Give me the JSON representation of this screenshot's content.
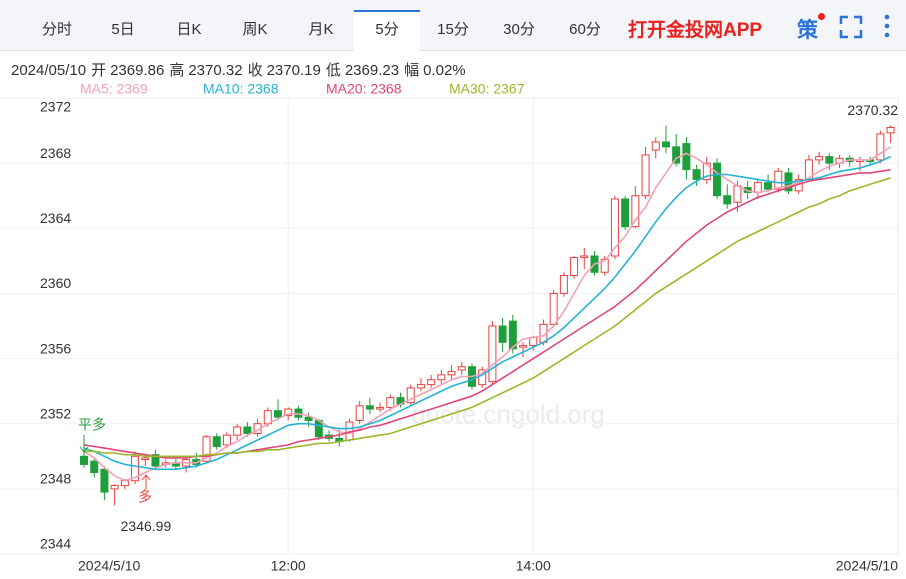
{
  "header": {
    "tabs": [
      "分时",
      "5日",
      "日K",
      "周K",
      "月K",
      "5分",
      "15分",
      "30分",
      "60分"
    ],
    "app_link": "打开金投网APP",
    "strategy": "策"
  },
  "info": {
    "date": "2024/05/10",
    "items": [
      {
        "label": "开",
        "value": "2369.86"
      },
      {
        "label": "高",
        "value": "2370.32"
      },
      {
        "label": "收",
        "value": "2370.19"
      },
      {
        "label": "低",
        "value": "2369.23"
      },
      {
        "label": "幅",
        "value": "0.02%"
      }
    ]
  },
  "chart_data": {
    "type": "candlestick",
    "categories": [
      "2024/5/10",
      null,
      null,
      null,
      null,
      null,
      null,
      null,
      null,
      null,
      null,
      null,
      null,
      null,
      null,
      null,
      null,
      null,
      null,
      null,
      "12:00",
      null,
      null,
      null,
      null,
      null,
      null,
      null,
      null,
      null,
      null,
      null,
      null,
      null,
      null,
      null,
      null,
      null,
      null,
      null,
      null,
      null,
      null,
      null,
      "14:00",
      null,
      null,
      null,
      null,
      null,
      null,
      null,
      null,
      null,
      null,
      null,
      null,
      null,
      null,
      null,
      null,
      null,
      null,
      null,
      null,
      null,
      null,
      null,
      null,
      null,
      null,
      null,
      null,
      null,
      null,
      null,
      null,
      null,
      null,
      "2024/5/10"
    ],
    "open": [
      2350.0,
      2349.7,
      2349.2,
      2348.0,
      2348.2,
      2348.5,
      2349.8,
      2350.1,
      2349.5,
      2349.6,
      2349.4,
      2349.8,
      2349.7,
      2351.2,
      2350.7,
      2351.3,
      2351.8,
      2351.4,
      2352.0,
      2352.8,
      2352.5,
      2352.9,
      2352.4,
      2352.2,
      2351.3,
      2351.1,
      2351.0,
      2352.2,
      2353.1,
      2352.9,
      2353.0,
      2353.6,
      2353.3,
      2354.2,
      2354.4,
      2354.7,
      2355.0,
      2355.3,
      2355.5,
      2354.4,
      2354.6,
      2358.0,
      2358.3,
      2356.7,
      2356.8,
      2357.0,
      2358.1,
      2360.0,
      2361.1,
      2362.2,
      2362.3,
      2361.3,
      2362.3,
      2365.8,
      2364.1,
      2366.0,
      2368.8,
      2369.3,
      2369.0,
      2369.2,
      2367.6,
      2367.0,
      2368.0,
      2366.0,
      2365.6,
      2366.5,
      2366.2,
      2366.8,
      2366.4,
      2367.4,
      2366.3,
      2367.0,
      2368.2,
      2368.4,
      2368.0,
      2368.3,
      2368.1,
      2368.2,
      2368.2,
      2369.86
    ],
    "high": [
      2350.3,
      2349.9,
      2349.4,
      2348.3,
      2348.6,
      2350.3,
      2350.1,
      2350.4,
      2349.8,
      2349.9,
      2349.9,
      2350.2,
      2351.3,
      2351.4,
      2351.5,
      2352.0,
      2352.1,
      2352.3,
      2353.0,
      2353.5,
      2353.0,
      2353.1,
      2352.7,
      2352.3,
      2351.6,
      2351.7,
      2352.3,
      2353.4,
      2353.6,
      2353.3,
      2353.8,
      2353.9,
      2354.4,
      2354.8,
      2355.0,
      2355.3,
      2355.6,
      2355.8,
      2355.7,
      2355.5,
      2358.3,
      2358.5,
      2358.7,
      2357.0,
      2357.4,
      2358.4,
      2360.2,
      2361.3,
      2362.3,
      2362.8,
      2362.6,
      2362.3,
      2366.0,
      2366.0,
      2366.6,
      2369.0,
      2369.6,
      2370.3,
      2369.8,
      2369.6,
      2367.9,
      2368.4,
      2368.3,
      2366.7,
      2366.9,
      2366.9,
      2367.0,
      2367.3,
      2367.7,
      2367.7,
      2367.3,
      2368.5,
      2368.7,
      2368.6,
      2368.5,
      2368.5,
      2368.4,
      2368.4,
      2370.0,
      2370.32
    ],
    "low": [
      2349.3,
      2348.7,
      2347.3,
      2346.99,
      2348.0,
      2348.3,
      2349.4,
      2349.2,
      2349.3,
      2349.2,
      2349.0,
      2349.3,
      2349.6,
      2350.4,
      2350.5,
      2351.0,
      2351.2,
      2351.2,
      2351.8,
      2352.2,
      2352.2,
      2352.2,
      2351.8,
      2351.0,
      2350.9,
      2350.6,
      2350.9,
      2352.0,
      2352.6,
      2352.7,
      2352.8,
      2353.0,
      2353.1,
      2354.0,
      2354.2,
      2354.4,
      2354.7,
      2355.0,
      2354.1,
      2354.2,
      2354.4,
      2356.4,
      2356.3,
      2356.1,
      2356.5,
      2356.8,
      2357.9,
      2359.8,
      2360.9,
      2361.5,
      2361.1,
      2361.1,
      2362.1,
      2363.9,
      2364.0,
      2365.8,
      2368.3,
      2368.6,
      2367.8,
      2367.0,
      2366.6,
      2366.7,
      2365.8,
      2365.2,
      2365.0,
      2365.8,
      2365.8,
      2366.2,
      2366.2,
      2366.1,
      2366.1,
      2366.9,
      2367.9,
      2367.6,
      2367.7,
      2367.8,
      2367.5,
      2367.9,
      2368.0,
      2369.23
    ],
    "close": [
      2349.5,
      2349.0,
      2347.8,
      2348.2,
      2348.5,
      2350.0,
      2349.9,
      2349.4,
      2349.6,
      2349.4,
      2349.8,
      2349.5,
      2351.2,
      2350.6,
      2351.3,
      2351.8,
      2351.4,
      2352.0,
      2352.8,
      2352.4,
      2352.9,
      2352.4,
      2352.2,
      2351.2,
      2351.1,
      2350.9,
      2352.1,
      2353.1,
      2352.9,
      2353.0,
      2353.6,
      2353.2,
      2354.2,
      2354.4,
      2354.7,
      2355.0,
      2355.2,
      2355.5,
      2354.3,
      2355.3,
      2358.0,
      2357.0,
      2356.6,
      2356.8,
      2357.3,
      2358.1,
      2360.0,
      2361.1,
      2362.2,
      2362.3,
      2361.3,
      2362.1,
      2365.8,
      2364.1,
      2366.0,
      2368.5,
      2369.3,
      2369.0,
      2368.0,
      2367.6,
      2367.0,
      2368.0,
      2366.0,
      2365.5,
      2366.6,
      2366.2,
      2366.8,
      2366.4,
      2367.5,
      2366.3,
      2367.0,
      2368.2,
      2368.4,
      2368.0,
      2368.3,
      2368.1,
      2368.2,
      2368.1,
      2369.8,
      2370.19
    ],
    "up_color": "#e8413e",
    "down_color": "#1f9e3c",
    "series": [
      {
        "name": "MA5",
        "legend_label": "MA5: 2369",
        "color": "#f2a1b6",
        "values": [
          2350.3,
          2349.9,
          2349.3,
          2348.8,
          2348.5,
          2348.7,
          2349.0,
          2349.3,
          2349.5,
          2349.6,
          2349.6,
          2349.6,
          2349.9,
          2350.2,
          2350.6,
          2350.9,
          2351.3,
          2351.6,
          2352.0,
          2352.3,
          2352.6,
          2352.6,
          2352.5,
          2352.2,
          2351.8,
          2351.5,
          2351.4,
          2351.7,
          2352.1,
          2352.5,
          2352.9,
          2353.2,
          2353.5,
          2353.8,
          2354.1,
          2354.4,
          2354.7,
          2354.9,
          2354.9,
          2355.1,
          2355.6,
          2356.1,
          2356.7,
          2357.2,
          2357.3,
          2357.4,
          2358.0,
          2358.9,
          2360.0,
          2361.1,
          2361.8,
          2362.0,
          2362.8,
          2363.5,
          2364.5,
          2365.3,
          2366.5,
          2367.4,
          2368.3,
          2368.6,
          2368.3,
          2367.9,
          2367.4,
          2367.0,
          2366.6,
          2366.3,
          2366.2,
          2366.3,
          2366.5,
          2366.6,
          2366.8,
          2367.1,
          2367.5,
          2367.8,
          2368.0,
          2368.2,
          2368.2,
          2368.2,
          2368.6,
          2369.0
        ]
      },
      {
        "name": "MA10",
        "legend_label": "MA10: 2368",
        "color": "#25b3d3",
        "values": [
          2350.5,
          2350.3,
          2350.0,
          2349.7,
          2349.5,
          2349.4,
          2349.3,
          2349.2,
          2349.2,
          2349.2,
          2349.3,
          2349.4,
          2349.6,
          2349.8,
          2350.1,
          2350.4,
          2350.7,
          2351.0,
          2351.3,
          2351.6,
          2351.9,
          2352.0,
          2352.0,
          2351.9,
          2351.8,
          2351.7,
          2351.7,
          2351.8,
          2352.0,
          2352.2,
          2352.5,
          2352.8,
          2353.1,
          2353.4,
          2353.7,
          2354.0,
          2354.3,
          2354.5,
          2354.7,
          2355.0,
          2355.4,
          2355.8,
          2356.1,
          2356.4,
          2356.7,
          2357.0,
          2357.4,
          2357.9,
          2358.5,
          2359.1,
          2359.7,
          2360.3,
          2361.0,
          2361.8,
          2362.6,
          2363.5,
          2364.4,
          2365.2,
          2365.9,
          2366.5,
          2366.9,
          2367.2,
          2367.3,
          2367.3,
          2367.2,
          2367.1,
          2367.0,
          2366.9,
          2366.8,
          2366.8,
          2366.9,
          2367.0,
          2367.1,
          2367.3,
          2367.5,
          2367.6,
          2367.7,
          2367.9,
          2368.1,
          2368.4
        ]
      },
      {
        "name": "MA20",
        "legend_label": "MA20: 2368",
        "color": "#e0457b",
        "values": [
          2350.7,
          2350.6,
          2350.5,
          2350.4,
          2350.3,
          2350.2,
          2350.1,
          2350.0,
          2349.9,
          2349.9,
          2349.9,
          2350.0,
          2350.0,
          2350.1,
          2350.2,
          2350.2,
          2350.3,
          2350.4,
          2350.5,
          2350.6,
          2350.7,
          2350.9,
          2351.0,
          2351.1,
          2351.2,
          2351.3,
          2351.5,
          2351.6,
          2351.8,
          2351.9,
          2352.1,
          2352.3,
          2352.5,
          2352.7,
          2352.9,
          2353.1,
          2353.3,
          2353.5,
          2353.7,
          2354.0,
          2354.4,
          2354.8,
          2355.2,
          2355.6,
          2356.0,
          2356.4,
          2356.8,
          2357.2,
          2357.6,
          2358.0,
          2358.4,
          2358.8,
          2359.2,
          2359.7,
          2360.2,
          2360.8,
          2361.4,
          2362.0,
          2362.6,
          2363.2,
          2363.7,
          2364.2,
          2364.6,
          2365.0,
          2365.3,
          2365.6,
          2365.9,
          2366.1,
          2366.3,
          2366.5,
          2366.7,
          2366.9,
          2367.0,
          2367.1,
          2367.2,
          2367.3,
          2367.4,
          2367.4,
          2367.5,
          2367.6
        ]
      },
      {
        "name": "MA30",
        "legend_label": "MA30: 2367",
        "color": "#9bb82a",
        "values": [
          2350.3,
          2350.3,
          2350.2,
          2350.2,
          2350.1,
          2350.1,
          2350.0,
          2350.0,
          2350.0,
          2350.0,
          2350.0,
          2350.0,
          2350.1,
          2350.1,
          2350.2,
          2350.2,
          2350.3,
          2350.3,
          2350.4,
          2350.4,
          2350.5,
          2350.6,
          2350.7,
          2350.8,
          2350.8,
          2350.9,
          2351.0,
          2351.1,
          2351.2,
          2351.3,
          2351.4,
          2351.6,
          2351.8,
          2352.0,
          2352.2,
          2352.4,
          2352.6,
          2352.8,
          2353.0,
          2353.3,
          2353.6,
          2353.9,
          2354.2,
          2354.5,
          2354.8,
          2355.2,
          2355.6,
          2356.0,
          2356.4,
          2356.8,
          2357.2,
          2357.6,
          2358.0,
          2358.5,
          2359.0,
          2359.5,
          2360.0,
          2360.4,
          2360.8,
          2361.2,
          2361.6,
          2362.0,
          2362.4,
          2362.8,
          2363.2,
          2363.5,
          2363.8,
          2364.1,
          2364.4,
          2364.7,
          2365.0,
          2365.3,
          2365.5,
          2365.8,
          2366.0,
          2366.3,
          2366.5,
          2366.7,
          2366.9,
          2367.1
        ]
      }
    ],
    "ylim": [
      2344,
      2372
    ],
    "yticks": [
      2344,
      2348,
      2352,
      2356,
      2360,
      2364,
      2368,
      2372
    ],
    "grid": true,
    "annotations": {
      "high_label": "2370.32",
      "low_label": "2346.99",
      "signals": [
        "平多",
        "多"
      ],
      "watermark": "quote.cngold.org"
    }
  }
}
